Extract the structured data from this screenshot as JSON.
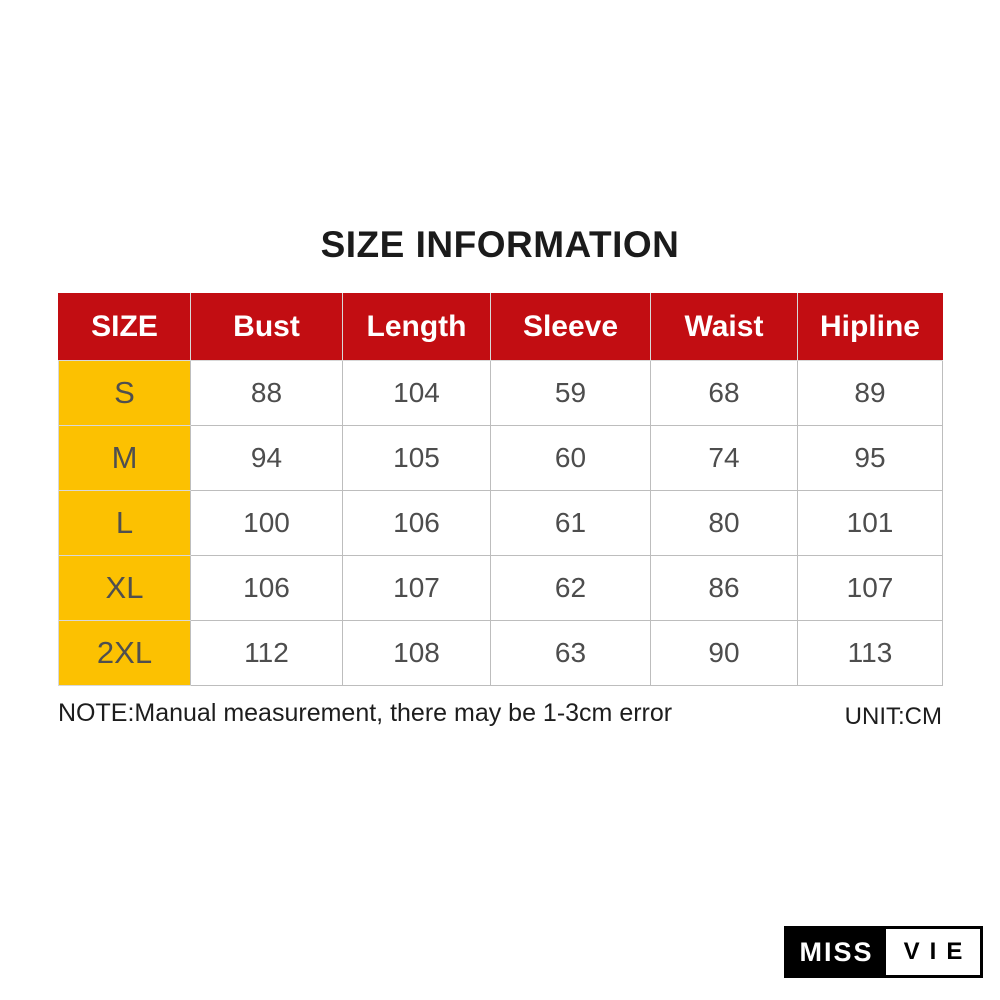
{
  "title": "SIZE INFORMATION",
  "chart_data": {
    "type": "table",
    "title": "SIZE INFORMATION",
    "columns": [
      "SIZE",
      "Bust",
      "Length",
      "Sleeve",
      "Waist",
      "Hipline"
    ],
    "rows": [
      [
        "S",
        "88",
        "104",
        "59",
        "68",
        "89"
      ],
      [
        "M",
        "94",
        "105",
        "60",
        "74",
        "95"
      ],
      [
        "L",
        "100",
        "106",
        "61",
        "80",
        "101"
      ],
      [
        "XL",
        "106",
        "107",
        "62",
        "86",
        "107"
      ],
      [
        "2XL",
        "112",
        "108",
        "63",
        "90",
        "113"
      ]
    ],
    "unit": "CM",
    "note": "NOTE:Manual measurement, there may be 1-3cm error"
  },
  "footer": {
    "note": "NOTE:Manual measurement, there may be 1-3cm error",
    "unit_label": "UNIT:CM"
  },
  "logo": {
    "left": "MISS",
    "right": "VIE"
  },
  "colors": {
    "header_red": "#c20d12",
    "size_column_yellow": "#fcc101",
    "grid_gray": "#bdbdbd",
    "data_text": "#4d4d4d",
    "logo_black": "#000000"
  }
}
